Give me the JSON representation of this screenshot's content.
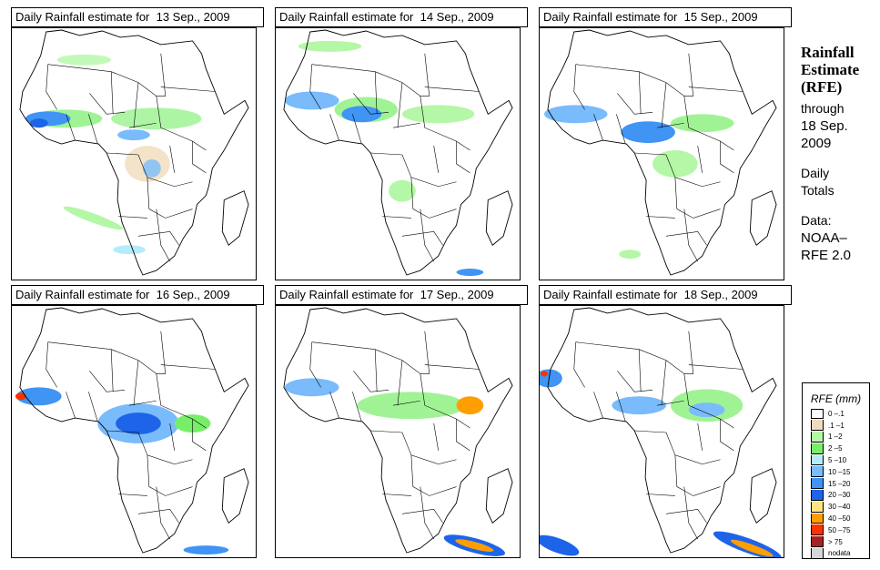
{
  "panels": [
    {
      "title": "Daily Rainfall estimate for  13 Sep., 2009",
      "date": "13 Sep., 2009"
    },
    {
      "title": "Daily Rainfall estimate for  14 Sep., 2009",
      "date": "14 Sep., 2009"
    },
    {
      "title": "Daily Rainfall estimate for  15 Sep., 2009",
      "date": "15 Sep., 2009"
    },
    {
      "title": "Daily Rainfall estimate for  16 Sep., 2009",
      "date": "16 Sep., 2009"
    },
    {
      "title": "Daily Rainfall estimate for  17 Sep., 2009",
      "date": "17 Sep., 2009"
    },
    {
      "title": "Daily Rainfall estimate for  18 Sep., 2009",
      "date": "18 Sep., 2009"
    }
  ],
  "side": {
    "heading": [
      "Rainfall",
      "Estimate",
      "(RFE)"
    ],
    "through_label": "through",
    "through_date": [
      "18 Sep.",
      "2009"
    ],
    "totals": [
      "Daily",
      "Totals"
    ],
    "data_label": "Data:",
    "source": [
      "NOAA–",
      "RFE 2.0"
    ]
  },
  "legend": {
    "title": "RFE (mm)",
    "items": [
      {
        "label": "0 –.1",
        "color": "#ffffff"
      },
      {
        "label": ".1 –1",
        "color": "#efdcbc"
      },
      {
        "label": "1 –2",
        "color": "#b4f7a6"
      },
      {
        "label": "2 –5",
        "color": "#77ee68"
      },
      {
        "label": "5 –10",
        "color": "#b4ecfb"
      },
      {
        "label": "10 –15",
        "color": "#79bbfb"
      },
      {
        "label": "15 –20",
        "color": "#3f94f4"
      },
      {
        "label": "20 –30",
        "color": "#1e64e8"
      },
      {
        "label": "30 –40",
        "color": "#fde585"
      },
      {
        "label": "40 –50",
        "color": "#fe9e00"
      },
      {
        "label": "50 –75",
        "color": "#fe3200"
      },
      {
        "label": "> 75",
        "color": "#a42222"
      },
      {
        "label": "nodata",
        "color": "#d6d6d6"
      }
    ]
  }
}
